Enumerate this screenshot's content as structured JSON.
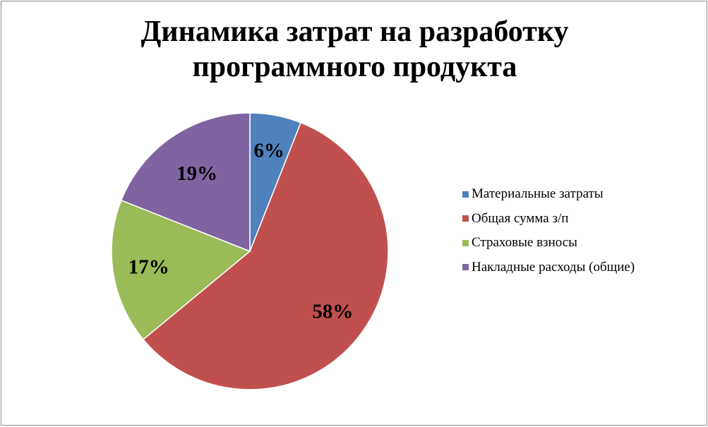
{
  "chart_data": {
    "type": "pie",
    "title": "Динамика затрат на разработку\nпрограммного продукта",
    "categories": [
      "Материальные затраты",
      "Общая сумма з/п",
      "Страховые взносы",
      "Накладные расходы (общие)"
    ],
    "values": [
      6,
      58,
      17,
      19
    ],
    "data_labels": [
      "6%",
      "58%",
      "17%",
      "19%"
    ],
    "colors": [
      "#4F81BD",
      "#C0504D",
      "#9BBB59",
      "#8064A2"
    ],
    "legend_position": "right"
  }
}
